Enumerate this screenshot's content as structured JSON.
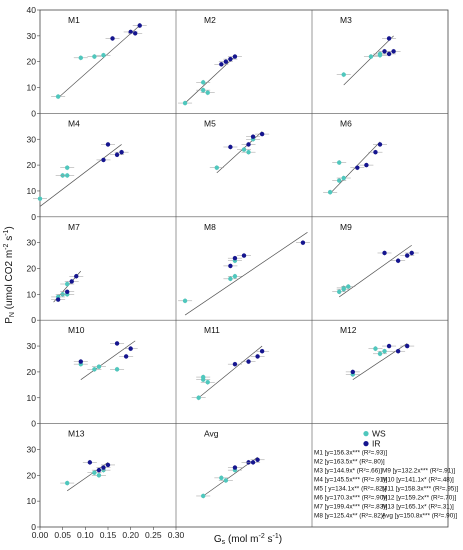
{
  "chart_data": {
    "type": "scatter",
    "xlabel": "Gs (mol m-2 s-1)",
    "ylabel": "PN (umol CO2 m-2 s-1)",
    "xlim": [
      0.0,
      0.3
    ],
    "ylim": [
      0,
      40
    ],
    "x_ticks": [
      "0.00",
      "0.05",
      "0.10",
      "0.15",
      "0.20",
      "0.25",
      "0.30"
    ],
    "y_ticks": [
      "0",
      "10",
      "20",
      "30",
      "40"
    ],
    "legend": {
      "position": "inside last panels",
      "series": [
        "WS",
        "IR"
      ]
    },
    "series_colors": {
      "WS": "#4fc7bd",
      "IR": "#15158f"
    },
    "panels": [
      {
        "name": "M1",
        "WS": [
          [
            0.04,
            6.5
          ],
          [
            0.09,
            21.5
          ],
          [
            0.12,
            22
          ],
          [
            0.14,
            22.5
          ]
        ],
        "IR": [
          [
            0.16,
            29
          ],
          [
            0.2,
            31.5
          ],
          [
            0.21,
            31
          ],
          [
            0.22,
            34
          ]
        ],
        "fit": [
          [
            0.04,
            6
          ],
          [
            0.22,
            34
          ]
        ]
      },
      {
        "name": "M2",
        "WS": [
          [
            0.02,
            4
          ],
          [
            0.06,
            12
          ],
          [
            0.06,
            9
          ],
          [
            0.07,
            8
          ]
        ],
        "IR": [
          [
            0.1,
            19
          ],
          [
            0.11,
            20
          ],
          [
            0.12,
            21
          ],
          [
            0.13,
            22
          ]
        ],
        "fit": [
          [
            0.02,
            4
          ],
          [
            0.13,
            22
          ]
        ]
      },
      {
        "name": "M3",
        "WS": [
          [
            0.07,
            15
          ],
          [
            0.13,
            22
          ],
          [
            0.15,
            23
          ],
          [
            0.15,
            22.5
          ]
        ],
        "IR": [
          [
            0.16,
            24
          ],
          [
            0.17,
            23
          ],
          [
            0.17,
            29
          ],
          [
            0.18,
            24
          ]
        ],
        "fit": [
          [
            0.07,
            11
          ],
          [
            0.18,
            30
          ]
        ]
      },
      {
        "name": "M4",
        "WS": [
          [
            0.0,
            7
          ],
          [
            0.05,
            16
          ],
          [
            0.06,
            19
          ],
          [
            0.06,
            16
          ]
        ],
        "IR": [
          [
            0.14,
            22
          ],
          [
            0.15,
            28
          ],
          [
            0.17,
            24
          ],
          [
            0.18,
            25
          ]
        ],
        "fit": [
          [
            0.0,
            4
          ],
          [
            0.18,
            28
          ]
        ]
      },
      {
        "name": "M5",
        "WS": [
          [
            0.09,
            19
          ],
          [
            0.15,
            26
          ],
          [
            0.16,
            25
          ],
          [
            0.17,
            30
          ]
        ],
        "IR": [
          [
            0.12,
            27
          ],
          [
            0.16,
            28
          ],
          [
            0.17,
            31
          ],
          [
            0.19,
            32
          ]
        ],
        "fit": [
          [
            0.09,
            17
          ],
          [
            0.19,
            33
          ]
        ]
      },
      {
        "name": "M6",
        "WS": [
          [
            0.04,
            9.5
          ],
          [
            0.06,
            14
          ],
          [
            0.06,
            21
          ],
          [
            0.07,
            15
          ]
        ],
        "IR": [
          [
            0.1,
            19
          ],
          [
            0.12,
            20
          ],
          [
            0.14,
            25
          ],
          [
            0.15,
            28
          ]
        ],
        "fit": [
          [
            0.04,
            9
          ],
          [
            0.15,
            29
          ]
        ]
      },
      {
        "name": "M7",
        "WS": [
          [
            0.04,
            9
          ],
          [
            0.05,
            10
          ],
          [
            0.06,
            14
          ],
          [
            0.06,
            10
          ]
        ],
        "IR": [
          [
            0.04,
            8
          ],
          [
            0.06,
            11
          ],
          [
            0.07,
            15
          ],
          [
            0.08,
            17
          ]
        ],
        "fit": [
          [
            0.03,
            7
          ],
          [
            0.09,
            19
          ]
        ]
      },
      {
        "name": "M8",
        "WS": [
          [
            0.02,
            7.5
          ],
          [
            0.12,
            16
          ],
          [
            0.13,
            17
          ],
          [
            0.13,
            23
          ]
        ],
        "IR": [
          [
            0.12,
            21
          ],
          [
            0.13,
            24
          ],
          [
            0.15,
            25
          ],
          [
            0.28,
            30
          ]
        ],
        "fit": [
          [
            0.02,
            2
          ],
          [
            0.29,
            34
          ]
        ]
      },
      {
        "name": "M9",
        "WS": [
          [
            0.06,
            11
          ],
          [
            0.07,
            12
          ],
          [
            0.07,
            12.5
          ],
          [
            0.08,
            13
          ]
        ],
        "IR": [
          [
            0.16,
            26
          ],
          [
            0.19,
            23
          ],
          [
            0.21,
            25
          ],
          [
            0.22,
            26
          ]
        ],
        "fit": [
          [
            0.06,
            9
          ],
          [
            0.22,
            29
          ]
        ]
      },
      {
        "name": "M10",
        "WS": [
          [
            0.09,
            23
          ],
          [
            0.12,
            21
          ],
          [
            0.13,
            22
          ],
          [
            0.17,
            21
          ]
        ],
        "IR": [
          [
            0.09,
            24
          ],
          [
            0.17,
            31
          ],
          [
            0.19,
            26
          ],
          [
            0.2,
            29
          ]
        ],
        "fit": [
          [
            0.09,
            17
          ],
          [
            0.21,
            32
          ]
        ]
      },
      {
        "name": "M11",
        "WS": [
          [
            0.05,
            10
          ],
          [
            0.06,
            17
          ],
          [
            0.06,
            18
          ],
          [
            0.07,
            16
          ]
        ],
        "IR": [
          [
            0.13,
            23
          ],
          [
            0.16,
            24
          ],
          [
            0.18,
            26
          ],
          [
            0.19,
            28
          ]
        ],
        "fit": [
          [
            0.05,
            10
          ],
          [
            0.19,
            30
          ]
        ]
      },
      {
        "name": "M12",
        "WS": [
          [
            0.09,
            19
          ],
          [
            0.14,
            29
          ],
          [
            0.15,
            27
          ],
          [
            0.16,
            28
          ]
        ],
        "IR": [
          [
            0.09,
            20
          ],
          [
            0.17,
            30
          ],
          [
            0.19,
            28
          ],
          [
            0.21,
            30
          ]
        ],
        "fit": [
          [
            0.09,
            17
          ],
          [
            0.21,
            31
          ]
        ]
      },
      {
        "name": "M13",
        "WS": [
          [
            0.06,
            17
          ],
          [
            0.12,
            21
          ],
          [
            0.13,
            20
          ],
          [
            0.14,
            22
          ]
        ],
        "IR": [
          [
            0.11,
            25
          ],
          [
            0.13,
            22
          ],
          [
            0.14,
            23
          ],
          [
            0.15,
            24
          ]
        ],
        "fit": [
          [
            0.06,
            14
          ],
          [
            0.15,
            25
          ]
        ]
      },
      {
        "name": "Avg",
        "WS": [
          [
            0.06,
            12
          ],
          [
            0.1,
            19
          ],
          [
            0.11,
            18
          ],
          [
            0.13,
            22
          ]
        ],
        "IR": [
          [
            0.13,
            23
          ],
          [
            0.16,
            25
          ],
          [
            0.17,
            25
          ],
          [
            0.18,
            26
          ]
        ],
        "fit": [
          [
            0.06,
            12
          ],
          [
            0.18,
            27
          ]
        ]
      }
    ],
    "equations": [
      "M1 [y=156.3x*** (R²=.93)]",
      "M2 [y=163.5x** (R²=.80)]",
      "M3 [y=144.9x* (R²=.66)]",
      "M4 [y=145.5x*** (R²=.91)]",
      "M5 [ y=134.1x** (R²=.82)]",
      "M6 [y=170.3x*** (R²=.90)]",
      "M7 [y=199.4x*** (R²=.83)]",
      "M8 [y=125.4x** (R²=.82)]",
      "M9 [y=132.2x*** (R²=.91)]",
      "M10 [y=141.1x* (R²=.48)]",
      "M11 [y=158.3x*** (R²=.95)]",
      "M12 [y=159.2x** (R²=.70)]",
      "M13 [y=165.1x* (R²=.31)]",
      "Avg [y=150.8x*** (R²=.90)]"
    ]
  }
}
